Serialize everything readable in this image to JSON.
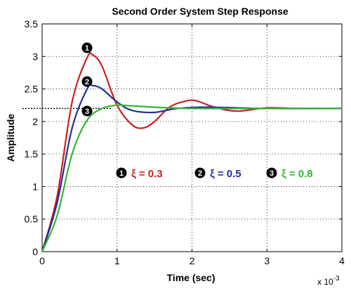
{
  "chart_data": {
    "type": "line",
    "title": "Second Order System Step Response",
    "xlabel": "Time (sec)",
    "ylabel": "Amplitude",
    "x_multiplier_label": "x 10",
    "x_multiplier_exp": "-3",
    "xlim": [
      0,
      4
    ],
    "ylim": [
      0,
      3.5
    ],
    "xticks": [
      0,
      1,
      2,
      3,
      4
    ],
    "yticks": [
      0,
      0.5,
      1,
      1.5,
      2,
      2.5,
      3,
      3.5
    ],
    "xtick_labels": [
      "0",
      "1",
      "2",
      "3",
      "4"
    ],
    "ytick_labels": [
      "0",
      "0.5",
      "1",
      "1.5",
      "2",
      "2.5",
      "3",
      "3.5"
    ],
    "grid": true,
    "steady_state": 2.2,
    "series": [
      {
        "marker": "1",
        "label": "ξ = 0.3",
        "zeta": 0.3,
        "color": "#cc1f1f",
        "x": [
          0,
          0.2,
          0.4,
          0.6,
          0.68,
          0.8,
          1.0,
          1.2,
          1.35,
          1.5,
          1.7,
          1.9,
          2.05,
          2.3,
          2.6,
          3.0,
          3.4,
          4.0
        ],
        "y": [
          0,
          0.85,
          2.3,
          2.98,
          3.02,
          2.85,
          2.25,
          1.95,
          1.9,
          2.0,
          2.22,
          2.31,
          2.32,
          2.22,
          2.16,
          2.21,
          2.2,
          2.2
        ]
      },
      {
        "marker": "2",
        "label": "ξ = 0.5",
        "zeta": 0.5,
        "color": "#1f2f99",
        "x": [
          0,
          0.2,
          0.4,
          0.6,
          0.68,
          0.8,
          1.0,
          1.2,
          1.5,
          1.8,
          2.2,
          3.0,
          4.0
        ],
        "y": [
          0,
          0.75,
          1.9,
          2.5,
          2.55,
          2.5,
          2.3,
          2.17,
          2.14,
          2.2,
          2.22,
          2.2,
          2.2
        ]
      },
      {
        "marker": "3",
        "label": "ξ = 0.8",
        "zeta": 0.8,
        "color": "#33b533",
        "x": [
          0,
          0.2,
          0.4,
          0.6,
          0.8,
          1.0,
          1.2,
          1.5,
          2.0,
          3.0,
          4.0
        ],
        "y": [
          0,
          0.55,
          1.5,
          2.02,
          2.2,
          2.25,
          2.24,
          2.22,
          2.2,
          2.2,
          2.2
        ]
      }
    ]
  }
}
